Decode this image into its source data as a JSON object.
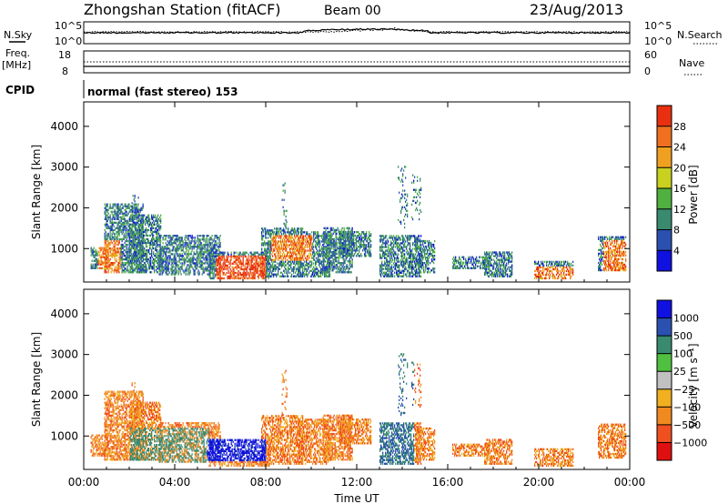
{
  "header": {
    "station": "Zhongshan Station (fitACF)",
    "beam": "Beam 00",
    "date": "23/Aug/2013"
  },
  "top_panel": {
    "left_label": "N.Sky",
    "left_ticks": [
      "10^5",
      "10^0"
    ],
    "right_ticks": [
      "10^5",
      "10^0"
    ],
    "right_label": "N.Search"
  },
  "freq_panel": {
    "left_label_1": "Freq.",
    "left_label_2": "[MHz]",
    "left_ticks": [
      "18",
      "8"
    ],
    "right_ticks": [
      "60",
      "0"
    ],
    "right_label": "Nave"
  },
  "cpid": {
    "label": "CPID",
    "text": "normal (fast stereo) 153"
  },
  "colors": {
    "power": [
      "#1010e0",
      "#2a50b0",
      "#3a8a70",
      "#50b040",
      "#c8d020",
      "#f0a020",
      "#f07020",
      "#e83010"
    ],
    "velocity": [
      "#e01010",
      "#f05020",
      "#f08a20",
      "#f0b020",
      "#c0c0c0",
      "#50c040",
      "#3a8a70",
      "#2a50b0",
      "#1010e0"
    ]
  },
  "chart_data": [
    {
      "type": "heatmap",
      "title": "",
      "xlabel": "",
      "ylabel": "Slant Range [km]",
      "x_ticks": [
        "00:00",
        "04:00",
        "08:00",
        "12:00",
        "16:00",
        "20:00",
        "00:00"
      ],
      "y_ticks": [
        "1000",
        "2000",
        "3000",
        "4000"
      ],
      "xlim": [
        0,
        24
      ],
      "ylim": [
        180,
        4600
      ],
      "colorbar": {
        "label": "Power [dB]",
        "ticks": [
          "4",
          "8",
          "12",
          "16",
          "20",
          "24",
          "28"
        ],
        "range": [
          0,
          30
        ]
      }
    },
    {
      "type": "heatmap",
      "title": "",
      "xlabel": "Time UT",
      "ylabel": "Slant Range [km]",
      "x_ticks": [
        "00:00",
        "04:00",
        "08:00",
        "12:00",
        "16:00",
        "20:00",
        "00:00"
      ],
      "y_ticks": [
        "1000",
        "2000",
        "3000",
        "4000"
      ],
      "xlim": [
        0,
        24
      ],
      "ylim": [
        180,
        4600
      ],
      "colorbar": {
        "label": "Velocity [m s⁻¹]",
        "ticks": [
          "1000",
          "500",
          "100",
          "25",
          "−25",
          "−100",
          "−500",
          "−1000"
        ],
        "range": [
          -1000,
          1000
        ]
      }
    }
  ]
}
